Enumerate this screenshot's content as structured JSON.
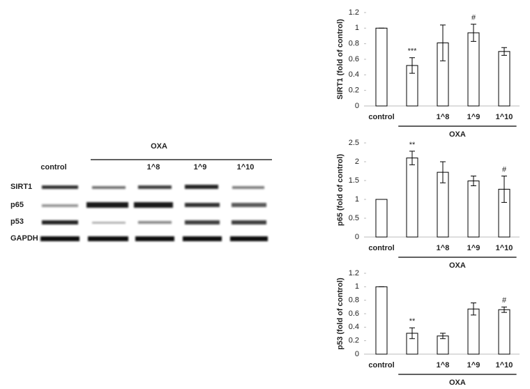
{
  "blot": {
    "group_label": "OXA",
    "lanes": [
      "control",
      null,
      "1^8",
      "1^9",
      "1^10"
    ],
    "rows": [
      "SIRT1",
      "p65",
      "p53",
      "GAPDH"
    ]
  },
  "chart_data": [
    {
      "type": "bar",
      "y_label": "SIRT1 (fold of control)",
      "categories": [
        "control",
        null,
        "1^8",
        "1^9",
        "1^10"
      ],
      "values": [
        1,
        0.52,
        0.81,
        0.94,
        0.7
      ],
      "errors": [
        0,
        0.1,
        0.23,
        0.11,
        0.05
      ],
      "bar_annotations": [
        null,
        "***",
        null,
        "#",
        null
      ],
      "group_label": "OXA",
      "color": "#ffffff",
      "ylim": [
        0,
        1.2
      ],
      "yticks": [
        0,
        0.2,
        0.4,
        0.6,
        0.8,
        1,
        1.2
      ],
      "grid": false
    },
    {
      "type": "bar",
      "y_label": "p65 (fold of control)",
      "categories": [
        "control",
        null,
        "1^8",
        "1^9",
        "1^10"
      ],
      "values": [
        1,
        2.1,
        1.72,
        1.49,
        1.27
      ],
      "errors": [
        0,
        0.18,
        0.28,
        0.13,
        0.35
      ],
      "bar_annotations": [
        null,
        "**",
        null,
        null,
        "#"
      ],
      "group_label": "OXA",
      "color": "#ffffff",
      "ylim": [
        0,
        2.5
      ],
      "yticks": [
        0,
        0.5,
        1,
        1.5,
        2,
        2.5
      ],
      "grid": false
    },
    {
      "type": "bar",
      "y_label": "p53 (fold of control)",
      "categories": [
        "control",
        null,
        "1^8",
        "1^9",
        "1^10"
      ],
      "values": [
        1,
        0.31,
        0.27,
        0.67,
        0.66
      ],
      "errors": [
        0,
        0.08,
        0.04,
        0.09,
        0.04
      ],
      "bar_annotations": [
        null,
        "**",
        null,
        null,
        "#"
      ],
      "group_label": "OXA",
      "color": "#ffffff",
      "ylim": [
        0,
        1.2
      ],
      "yticks": [
        0,
        0.2,
        0.4,
        0.6,
        0.8,
        1,
        1.2
      ],
      "grid": false
    }
  ]
}
